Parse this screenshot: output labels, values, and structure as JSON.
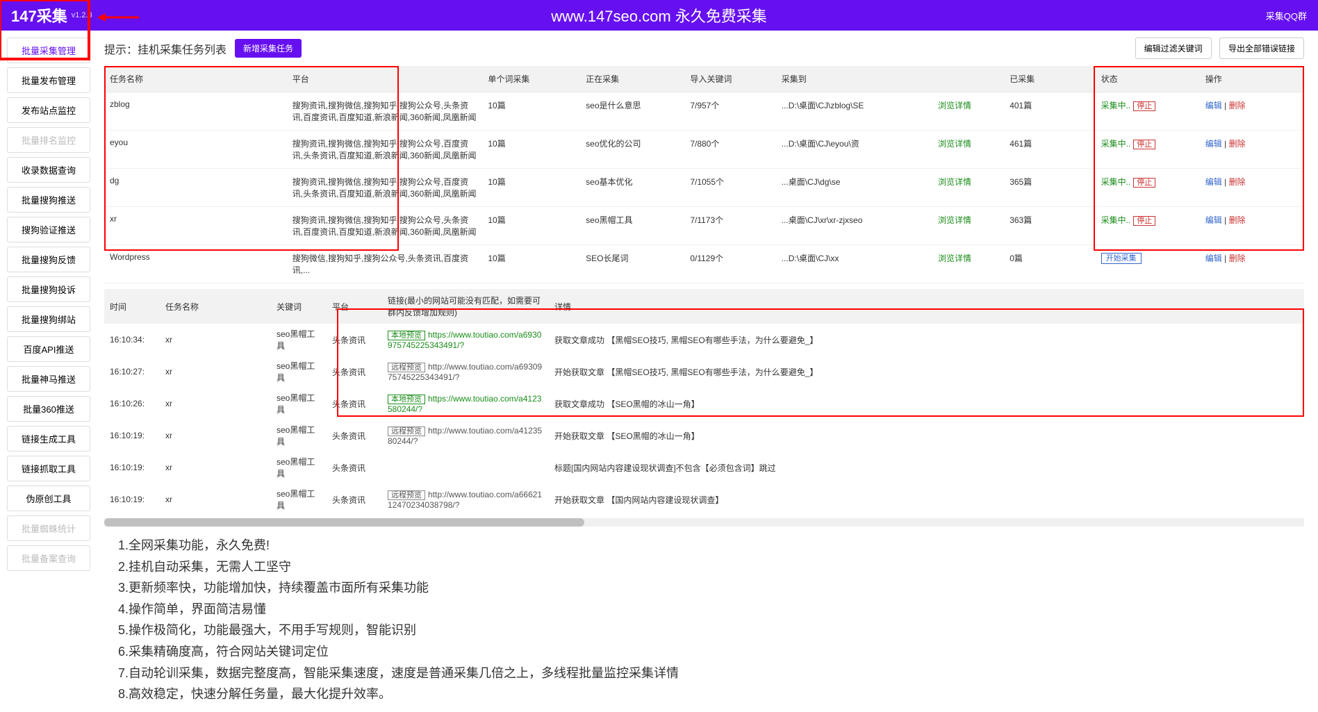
{
  "header": {
    "logo": "147采集",
    "version": "v1.2.3",
    "title": "www.147seo.com   永久免费采集",
    "qq": "采集QQ群"
  },
  "sidebar": [
    {
      "label": "批量采集管理",
      "cls": "active"
    },
    {
      "label": "批量发布管理",
      "cls": ""
    },
    {
      "label": "发布站点监控",
      "cls": ""
    },
    {
      "label": "批量排名监控",
      "cls": "disabled"
    },
    {
      "label": "收录数据查询",
      "cls": ""
    },
    {
      "label": "批量搜狗推送",
      "cls": ""
    },
    {
      "label": "搜狗验证推送",
      "cls": ""
    },
    {
      "label": "批量搜狗反馈",
      "cls": ""
    },
    {
      "label": "批量搜狗投诉",
      "cls": ""
    },
    {
      "label": "批量搜狗绑站",
      "cls": ""
    },
    {
      "label": "百度API推送",
      "cls": ""
    },
    {
      "label": "批量神马推送",
      "cls": ""
    },
    {
      "label": "批量360推送",
      "cls": ""
    },
    {
      "label": "链接生成工具",
      "cls": ""
    },
    {
      "label": "链接抓取工具",
      "cls": ""
    },
    {
      "label": "伪原创工具",
      "cls": ""
    },
    {
      "label": "批量蜘蛛统计",
      "cls": "disabled"
    },
    {
      "label": "批量备案查询",
      "cls": "disabled"
    }
  ],
  "tip": {
    "label": "提示：挂机采集任务列表",
    "newTask": "新增采集任务",
    "filterKw": "编辑过滤关键词",
    "exportErr": "导出全部错误链接"
  },
  "taskCols": [
    "任务名称",
    "平台",
    "单个词采集",
    "正在采集",
    "导入关键词",
    "采集到",
    "",
    "已采集",
    "状态",
    "操作"
  ],
  "tasks": [
    {
      "name": "zblog",
      "plat": "搜狗资讯,搜狗微信,搜狗知乎,搜狗公众号,头条资讯,百度资讯,百度知道,新浪新闻,360新闻,凤凰新闻",
      "single": "10篇",
      "now": "seo是什么意思",
      "kw": "7/957个",
      "path": "...D:\\桌面\\CJ\\zblog\\SE ",
      "view": "浏览详情",
      "col": "401篇",
      "status": "采集中..",
      "stop": "停止",
      "edit": "编辑",
      "del": "删除",
      "running": true
    },
    {
      "name": "eyou",
      "plat": "搜狗资讯,搜狗微信,搜狗知乎,搜狗公众号,百度资讯,头条资讯,百度知道,新浪新闻,360新闻,凤凰新闻",
      "single": "10篇",
      "now": "seo优化的公司",
      "kw": "7/880个",
      "path": "...D:\\桌面\\CJ\\eyou\\资 ",
      "view": "浏览详情",
      "col": "461篇",
      "status": "采集中..",
      "stop": "停止",
      "edit": "编辑",
      "del": "删除",
      "running": true
    },
    {
      "name": "dg",
      "plat": "搜狗资讯,搜狗微信,搜狗知乎,搜狗公众号,百度资讯,头条资讯,百度知道,新浪新闻,360新闻,凤凰新闻",
      "single": "10篇",
      "now": "seo基本优化",
      "kw": "7/1055个",
      "path": "...桌面\\CJ\\dg\\se ",
      "view": "浏览详情",
      "col": "365篇",
      "status": "采集中..",
      "stop": "停止",
      "edit": "编辑",
      "del": "删除",
      "running": true
    },
    {
      "name": "xr",
      "plat": "搜狗资讯,搜狗微信,搜狗知乎,搜狗公众号,头条资讯,百度资讯,百度知道,新浪新闻,360新闻,凤凰新闻",
      "single": "10篇",
      "now": "seo黑帽工具",
      "kw": "7/1173个",
      "path": "...桌面\\CJ\\xr\\xr-zjxseo ",
      "view": "浏览详情",
      "col": "363篇",
      "status": "采集中..",
      "stop": "停止",
      "edit": "编辑",
      "del": "删除",
      "running": true
    },
    {
      "name": "Wordpress",
      "plat": "搜狗微信,搜狗知乎,搜狗公众号,头条资讯,百度资讯,...",
      "single": "10篇",
      "now": "SEO长尾词",
      "kw": "0/1129个",
      "path": "...D:\\桌面\\CJ\\xx ",
      "view": "浏览详情",
      "col": "0篇",
      "start": "开始采集",
      "edit": "编辑",
      "del": "删除",
      "running": false
    }
  ],
  "logCols": [
    "时间",
    "任务名称",
    "关键词",
    "平台",
    "链接(最小的网站可能没有匹配，如需要可群内反馈增加规则)",
    "详情"
  ],
  "logs": [
    {
      "time": "16:10:34:",
      "task": "xr",
      "kw": "seo黑帽工具",
      "plat": "头条资讯",
      "tag": "本地预览",
      "tc": "local",
      "url": "https://www.toutiao.com/a6930975745225343491/?",
      "uc": "url-green",
      "detail": "获取文章成功 【黑帽SEO技巧, 黑帽SEO有哪些手法，为什么要避免_】"
    },
    {
      "time": "16:10:27:",
      "task": "xr",
      "kw": "seo黑帽工具",
      "plat": "头条资讯",
      "tag": "远程预览",
      "tc": "remote",
      "url": "http://www.toutiao.com/a6930975745225343491/?",
      "uc": "url-gray",
      "detail": "开始获取文章 【黑帽SEO技巧, 黑帽SEO有哪些手法，为什么要避免_】"
    },
    {
      "time": "16:10:26:",
      "task": "xr",
      "kw": "seo黑帽工具",
      "plat": "头条资讯",
      "tag": "本地预览",
      "tc": "local",
      "url": "https://www.toutiao.com/a4123580244/?",
      "uc": "url-green",
      "detail": "获取文章成功 【SEO黑帽的冰山一角】"
    },
    {
      "time": "16:10:19:",
      "task": "xr",
      "kw": "seo黑帽工具",
      "plat": "头条资讯",
      "tag": "远程预览",
      "tc": "remote",
      "url": "http://www.toutiao.com/a4123580244/?",
      "uc": "url-gray",
      "detail": "开始获取文章 【SEO黑帽的冰山一角】"
    },
    {
      "time": "16:10:19:",
      "task": "xr",
      "kw": "seo黑帽工具",
      "plat": "头条资讯",
      "tag": "",
      "tc": "",
      "url": "",
      "uc": "",
      "detail": "标题[国内网站内容建设现状调查]不包含【必须包含词】跳过"
    },
    {
      "time": "16:10:19:",
      "task": "xr",
      "kw": "seo黑帽工具",
      "plat": "头条资讯",
      "tag": "远程预览",
      "tc": "remote",
      "url": "http://www.toutiao.com/a6662112470234038798/?",
      "uc": "url-gray",
      "detail": "开始获取文章 【国内网站内容建设现状调查】"
    }
  ],
  "features": [
    "1.全网采集功能，永久免费!",
    "2.挂机自动采集，无需人工坚守",
    "3.更新频率快，功能增加快，持续覆盖市面所有采集功能",
    "4.操作简单，界面简洁易懂",
    "5.操作极简化，功能最强大，不用手写规则，智能识别",
    "6.采集精确度高，符合网站关键词定位",
    "7.自动轮训采集，数据完整度高，智能采集速度，速度是普通采集几倍之上，多线程批量监控采集详情",
    "8.高效稳定，快速分解任务量，最大化提升效率。"
  ]
}
